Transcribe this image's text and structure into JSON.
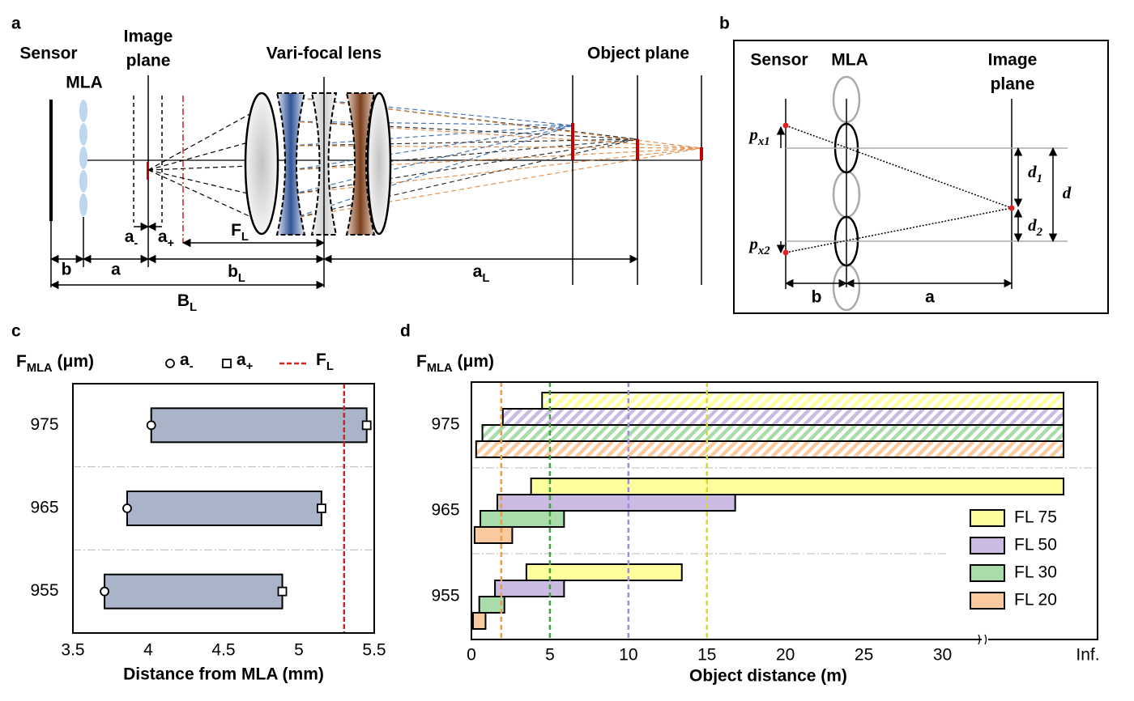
{
  "panel_labels": [
    "a",
    "b",
    "c",
    "d"
  ],
  "panel_a": {
    "sensor": "Sensor",
    "mla": "MLA",
    "image_plane": [
      "Image",
      "plane"
    ],
    "varifocal_lens": "Vari-focal lens",
    "object_plane": "Object plane",
    "a_minus": {
      "text": "a",
      "sub": "-"
    },
    "a_plus": {
      "text": "a",
      "sub": "+"
    },
    "f_l": {
      "text": "F",
      "sub": "L"
    },
    "b": "b",
    "a": "a",
    "b_l": {
      "text": "b",
      "sub": "L"
    },
    "a_l": {
      "text": "a",
      "sub": "L"
    },
    "big_b_l": {
      "text": "B",
      "sub": "L"
    }
  },
  "panel_b": {
    "sensor": "Sensor",
    "mla": "MLA",
    "image_plane": [
      "Image",
      "plane"
    ],
    "p_x1": {
      "text": "p",
      "sub": "x1"
    },
    "p_x2": {
      "text": "p",
      "sub": "x2"
    },
    "d_1": {
      "text": "d",
      "sub": "1"
    },
    "d_2": {
      "text": "d",
      "sub": "2"
    },
    "d": "d",
    "b": "b",
    "a": "a"
  },
  "chart_data": [
    {
      "type": "range_bar",
      "y_title": {
        "text": "F",
        "sub": "MLA",
        "rest": " (μm)"
      },
      "x_title": "Distance from MLA (mm)",
      "categories": [
        "975",
        "965",
        "955"
      ],
      "bar_color": "#a9b4c9",
      "series": [
        {
          "name": {
            "text": "a",
            "sub": "-"
          },
          "marker": "circle",
          "values": [
            4.02,
            3.86,
            3.71
          ]
        },
        {
          "name": {
            "text": "a",
            "sub": "+"
          },
          "marker": "square",
          "values": [
            5.45,
            5.15,
            4.89
          ]
        }
      ],
      "reference_line": {
        "name": {
          "text": "F",
          "sub": "L"
        },
        "value": 5.3,
        "color": "#d62020"
      },
      "xlim": [
        3.5,
        5.5
      ],
      "xticks": [
        3.5,
        4,
        4.5,
        5,
        5.5
      ]
    },
    {
      "type": "range_bar",
      "y_title": {
        "text": "F",
        "sub": "MLA",
        "rest": " (μm)"
      },
      "x_title": "Object distance (m)",
      "categories": [
        "975",
        "965",
        "955"
      ],
      "hatched": [
        true,
        false,
        false
      ],
      "series": [
        {
          "name": "FL 75",
          "color": "#ffff9e",
          "line_color": "#d8d828",
          "reference": 15,
          "start": [
            4.5,
            3.8,
            3.5
          ],
          "end": [
            null,
            null,
            13.4
          ]
        },
        {
          "name": "FL 50",
          "color": "#cbbbe3",
          "line_color": "#a08fd0",
          "reference": 10,
          "start": [
            2.0,
            1.65,
            1.5
          ],
          "end": [
            null,
            16.8,
            5.9
          ]
        },
        {
          "name": "FL 30",
          "color": "#a9dca9",
          "line_color": "#3aa53a",
          "reference": 5,
          "start": [
            0.7,
            0.57,
            0.5
          ],
          "end": [
            null,
            5.9,
            2.1
          ]
        },
        {
          "name": "FL 20",
          "color": "#f9c9a0",
          "line_color": "#f39a3c",
          "reference": 1.9,
          "start": [
            0.3,
            0.2,
            0.1
          ],
          "end": [
            null,
            2.6,
            0.9
          ]
        }
      ],
      "xlim": [
        0,
        32.5
      ],
      "xticks": [
        0,
        5,
        10,
        15,
        20,
        25,
        30
      ],
      "axis_break": true,
      "inf_label": "Inf.",
      "legend": "lower right"
    }
  ]
}
